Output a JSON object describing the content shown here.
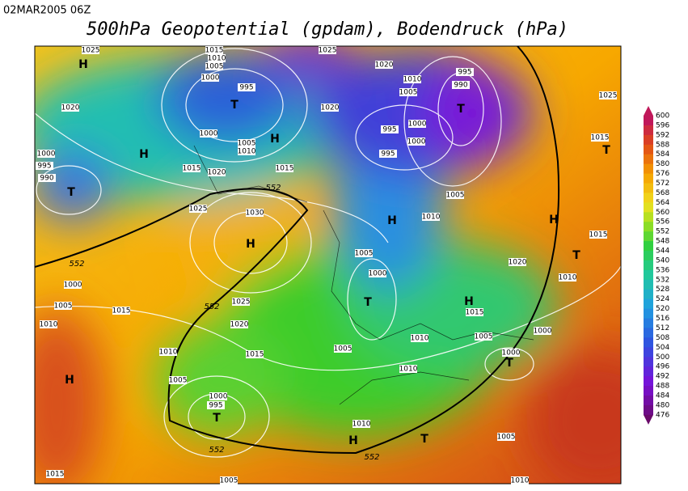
{
  "header": {
    "date": "02MAR2005 06Z",
    "title": "500hPa Geopotential (gpdam), Bodendruck (hPa)"
  },
  "isobar_labels": [
    1025,
    1015,
    1010,
    1005,
    1000,
    995,
    1020,
    1000,
    1005,
    1010,
    995,
    990,
    1000,
    1015,
    1020,
    1015,
    1025,
    1030,
    1000,
    1005,
    1015,
    1010,
    1025,
    1020,
    1015,
    1010,
    1005,
    1000,
    995,
    1005,
    1015,
    1010,
    1005,
    1010,
    1010,
    1005,
    1000,
    1000,
    1015,
    1020,
    1010,
    1015,
    1005,
    1000,
    1010,
    1005,
    1000,
    995,
    995,
    1000,
    1005,
    1010,
    1020,
    995,
    990,
    1020,
    1025,
    1015,
    1005,
    1010,
    1025
  ],
  "contour_labels": [
    552,
    552,
    552,
    552,
    552
  ],
  "pressure_centers": [
    "H",
    "T",
    "H",
    "H",
    "T",
    "H",
    "H",
    "H",
    "T",
    "T",
    "H",
    "T",
    "H",
    "T",
    "H",
    "T",
    "T",
    "T"
  ],
  "colorbar": {
    "ticks": [
      600,
      596,
      592,
      588,
      584,
      580,
      576,
      572,
      568,
      564,
      560,
      556,
      552,
      548,
      544,
      540,
      536,
      532,
      528,
      524,
      520,
      516,
      512,
      508,
      504,
      500,
      496,
      492,
      488,
      484,
      480,
      476
    ]
  }
}
